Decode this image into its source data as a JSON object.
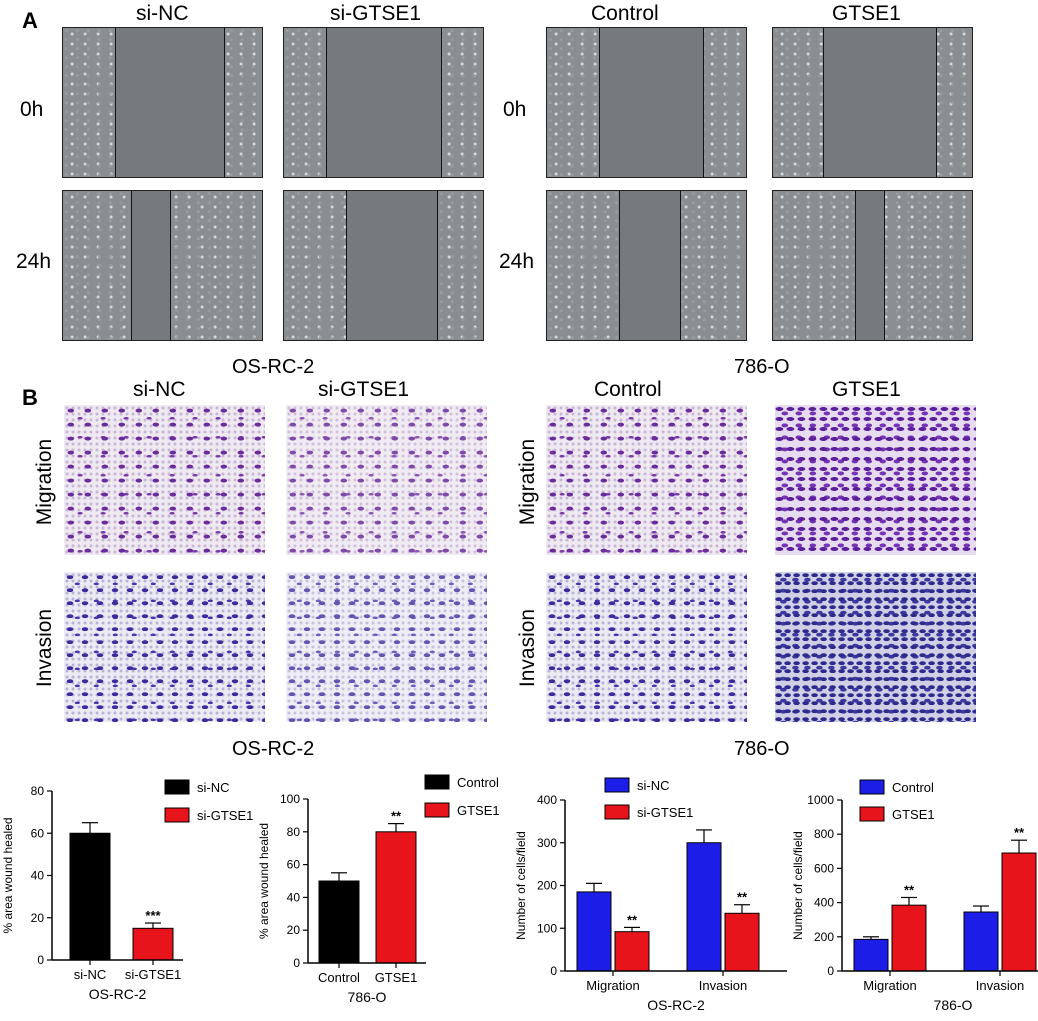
{
  "panel_a": {
    "letter": "A",
    "left": {
      "col1": "si-NC",
      "col2": "si-GTSE1",
      "caption": "OS-RC-2"
    },
    "right": {
      "col1": "Control",
      "col2": "GTSE1",
      "caption": "786-O"
    },
    "rows": [
      "0h",
      "24h"
    ]
  },
  "panel_b": {
    "letter": "B",
    "left": {
      "col1": "si-NC",
      "col2": "si-GTSE1",
      "caption": "OS-RC-2"
    },
    "right": {
      "col1": "Control",
      "col2": "GTSE1",
      "caption": "786-O"
    },
    "rows": [
      "Migration",
      "Invasion"
    ]
  },
  "colors": {
    "black": "#000000",
    "red": "#e8141b",
    "blue": "#1c1ee8"
  },
  "chart_data": [
    {
      "type": "bar",
      "categories": [
        "si-NC",
        "si-GTSE1"
      ],
      "values": [
        60,
        15
      ],
      "errors": [
        5,
        2.5
      ],
      "colors": [
        "#000000",
        "#e8141b"
      ],
      "legend": [
        "si-NC",
        "si-GTSE1"
      ],
      "significance": [
        "",
        "***"
      ],
      "ylabel": "% area wound healed",
      "xlabel": "OS-RC-2",
      "ylim": [
        0,
        80
      ],
      "yticks": [
        0,
        20,
        40,
        60,
        80
      ]
    },
    {
      "type": "bar",
      "categories": [
        "Control",
        "GTSE1"
      ],
      "values": [
        50,
        80
      ],
      "errors": [
        5,
        5
      ],
      "colors": [
        "#000000",
        "#e8141b"
      ],
      "legend": [
        "Control",
        "GTSE1"
      ],
      "significance": [
        "",
        "**"
      ],
      "ylabel": "% area wound healed",
      "xlabel": "786-O",
      "ylim": [
        0,
        100
      ],
      "yticks": [
        0,
        20,
        40,
        60,
        80,
        100
      ]
    },
    {
      "type": "bar",
      "categories": [
        "Migration",
        "Invasion"
      ],
      "series": [
        {
          "name": "si-NC",
          "values": [
            185,
            300
          ],
          "errors": [
            20,
            30
          ],
          "color": "#1c1ee8"
        },
        {
          "name": "si-GTSE1",
          "values": [
            92,
            135
          ],
          "errors": [
            10,
            20
          ],
          "color": "#e8141b"
        }
      ],
      "significance": [
        "**",
        "**"
      ],
      "ylabel": "Number of cells/field",
      "xlabel": "OS-RC-2",
      "ylim": [
        0,
        400
      ],
      "yticks": [
        0,
        100,
        200,
        300,
        400
      ]
    },
    {
      "type": "bar",
      "categories": [
        "Migration",
        "Invasion"
      ],
      "series": [
        {
          "name": "Control",
          "values": [
            185,
            345
          ],
          "errors": [
            15,
            35
          ],
          "color": "#1c1ee8"
        },
        {
          "name": "GTSE1",
          "values": [
            385,
            690
          ],
          "errors": [
            45,
            75
          ],
          "color": "#e8141b"
        }
      ],
      "significance": [
        "**",
        "**"
      ],
      "ylabel": "Number of cells/field",
      "xlabel": "786-O",
      "ylim": [
        0,
        1000
      ],
      "yticks": [
        0,
        200,
        400,
        600,
        800,
        1000
      ]
    }
  ]
}
